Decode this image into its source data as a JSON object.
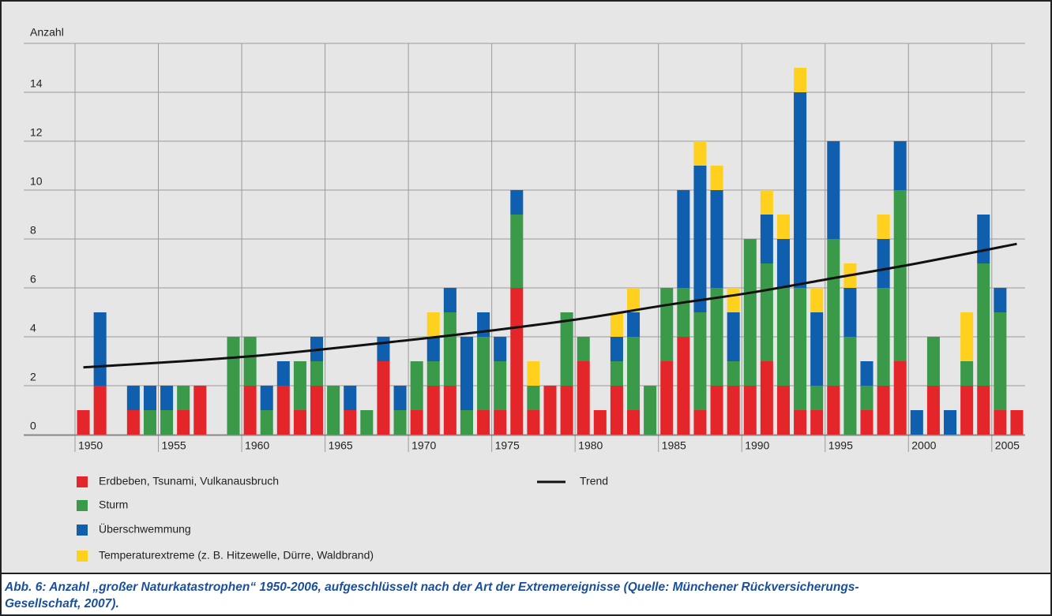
{
  "chart_data": {
    "type": "bar",
    "stacked": true,
    "y_label": "Anzahl",
    "x": [
      1950,
      1951,
      1952,
      1953,
      1954,
      1955,
      1956,
      1957,
      1958,
      1959,
      1960,
      1961,
      1962,
      1963,
      1964,
      1965,
      1966,
      1967,
      1968,
      1969,
      1970,
      1971,
      1972,
      1973,
      1974,
      1975,
      1976,
      1977,
      1978,
      1979,
      1980,
      1981,
      1982,
      1983,
      1984,
      1985,
      1986,
      1987,
      1988,
      1989,
      1990,
      1991,
      1992,
      1993,
      1994,
      1995,
      1996,
      1997,
      1998,
      1999,
      2000,
      2001,
      2002,
      2003,
      2004,
      2005,
      2006
    ],
    "series": [
      {
        "name": "Erdbeben, Tsunami, Vulkanausbruch",
        "color": "#e4262b",
        "values": [
          1,
          2,
          0,
          1,
          0,
          0,
          1,
          2,
          0,
          0,
          2,
          0,
          2,
          1,
          2,
          0,
          1,
          0,
          3,
          0,
          1,
          2,
          2,
          0,
          1,
          1,
          6,
          1,
          2,
          2,
          3,
          1,
          2,
          1,
          0,
          3,
          4,
          1,
          2,
          2,
          2,
          3,
          2,
          1,
          1,
          2,
          0,
          1,
          2,
          3,
          0,
          2,
          0,
          2,
          2,
          1,
          1
        ]
      },
      {
        "name": "Sturm",
        "color": "#3a9a4a",
        "values": [
          0,
          0,
          0,
          0,
          1,
          1,
          1,
          0,
          0,
          4,
          2,
          1,
          0,
          2,
          1,
          2,
          0,
          1,
          0,
          1,
          2,
          1,
          3,
          1,
          3,
          2,
          3,
          1,
          0,
          3,
          1,
          0,
          1,
          3,
          2,
          3,
          2,
          4,
          4,
          1,
          6,
          4,
          4,
          5,
          1,
          6,
          4,
          1,
          4,
          7,
          0,
          2,
          0,
          1,
          5,
          4,
          0
        ]
      },
      {
        "name": "Überschwemmung",
        "color": "#0f5fae",
        "values": [
          0,
          3,
          0,
          1,
          1,
          1,
          0,
          0,
          0,
          0,
          0,
          1,
          1,
          0,
          1,
          0,
          1,
          0,
          1,
          1,
          0,
          1,
          1,
          3,
          1,
          1,
          1,
          0,
          0,
          0,
          0,
          0,
          1,
          1,
          0,
          0,
          4,
          6,
          4,
          2,
          0,
          2,
          2,
          8,
          3,
          4,
          2,
          1,
          2,
          2,
          1,
          0,
          1,
          0,
          2,
          1,
          0
        ]
      },
      {
        "name": "Temperaturextreme (z. B. Hitzewelle, Dürre, Waldbrand)",
        "color": "#ffd11e",
        "values": [
          0,
          0,
          0,
          0,
          0,
          0,
          0,
          0,
          0,
          0,
          0,
          0,
          0,
          0,
          0,
          0,
          0,
          0,
          0,
          0,
          0,
          1,
          0,
          0,
          0,
          0,
          0,
          1,
          0,
          0,
          0,
          0,
          1,
          1,
          0,
          0,
          0,
          1,
          1,
          1,
          0,
          1,
          1,
          1,
          1,
          0,
          1,
          0,
          1,
          0,
          0,
          0,
          0,
          2,
          0,
          0,
          0
        ]
      }
    ],
    "trend": {
      "name": "Trend",
      "color": "#111111",
      "x": [
        1950,
        1960,
        1970,
        1975,
        1980,
        1985,
        1990,
        1995,
        2000,
        2006
      ],
      "values": [
        2.75,
        3.2,
        3.9,
        4.3,
        4.75,
        5.3,
        5.8,
        6.4,
        7.0,
        7.8
      ]
    },
    "xlim": [
      1949.5,
      2006.5
    ],
    "xticks": [
      1950,
      1955,
      1960,
      1965,
      1970,
      1975,
      1980,
      1985,
      1990,
      1995,
      2000,
      2005
    ],
    "ylim": [
      0,
      16
    ],
    "yticks": [
      0,
      2,
      4,
      6,
      8,
      10,
      12,
      14
    ],
    "grid": true,
    "caption": [
      "Abb. 6: Anzahl „großer Naturkatastrophen“ 1950-2006, aufgeschlüsselt nach der Art der Extremereignisse (Quelle: Münchener Rückversicherungs-",
      "Gesellschaft, 2007)."
    ]
  }
}
